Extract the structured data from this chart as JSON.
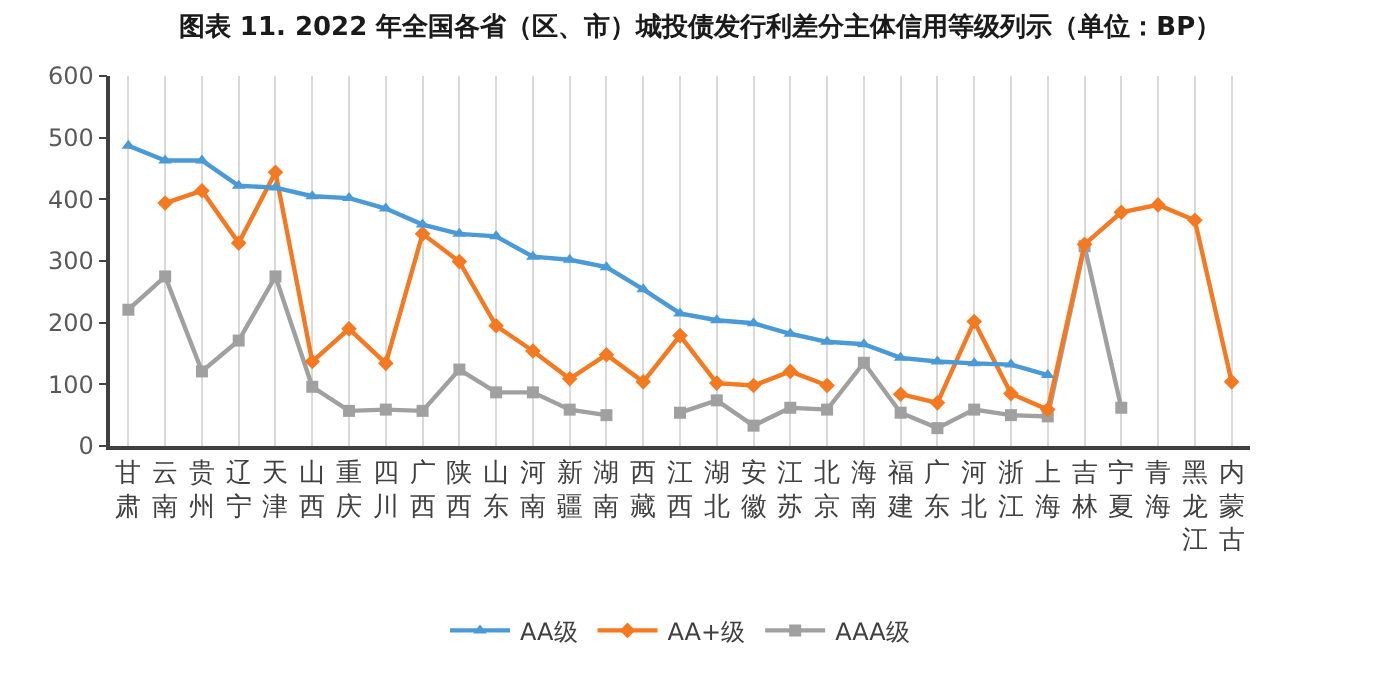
{
  "chart_data": {
    "type": "line",
    "title": "图表 11. 2022 年全国各省（区、市）城投债发行利差分主体信用等级列示（单位：BP）",
    "categories": [
      "甘肃",
      "云南",
      "贵州",
      "辽宁",
      "天津",
      "山西",
      "重庆",
      "四川",
      "广西",
      "陕西",
      "山东",
      "河南",
      "新疆",
      "湖南",
      "西藏",
      "江西",
      "湖北",
      "安徽",
      "江苏",
      "北京",
      "海南",
      "福建",
      "广东",
      "河北",
      "浙江",
      "上海",
      "吉林",
      "宁夏",
      "青海",
      "黑龙江",
      "内蒙古"
    ],
    "series": [
      {
        "name": "AA级",
        "color": "#4a9ad8",
        "marker": "triangle",
        "values": [
          487,
          463,
          463,
          422,
          419,
          405,
          402,
          385,
          359,
          344,
          340,
          307,
          302,
          290,
          254,
          215,
          204,
          199,
          182,
          169,
          165,
          143,
          137,
          134,
          132,
          115,
          null,
          null,
          null,
          null,
          null
        ]
      },
      {
        "name": "AA+级",
        "color": "#f47920",
        "marker": "diamond",
        "values": [
          null,
          394,
          414,
          329,
          444,
          137,
          190,
          134,
          344,
          299,
          195,
          154,
          109,
          148,
          104,
          179,
          102,
          98,
          121,
          98,
          null,
          84,
          70,
          202,
          85,
          59,
          327,
          379,
          391,
          366,
          104
        ]
      },
      {
        "name": "AAA级",
        "color": "#a0a0a0",
        "marker": "square",
        "values": [
          221,
          275,
          121,
          171,
          275,
          96,
          57,
          59,
          57,
          124,
          87,
          87,
          59,
          50,
          null,
          54,
          74,
          33,
          62,
          59,
          135,
          54,
          29,
          59,
          50,
          48,
          324,
          62,
          null,
          null,
          null
        ]
      }
    ],
    "ylim": [
      0,
      600
    ],
    "yticks": [
      0,
      100,
      200,
      300,
      400,
      500,
      600
    ],
    "grid": "x",
    "legend": "bottom"
  }
}
